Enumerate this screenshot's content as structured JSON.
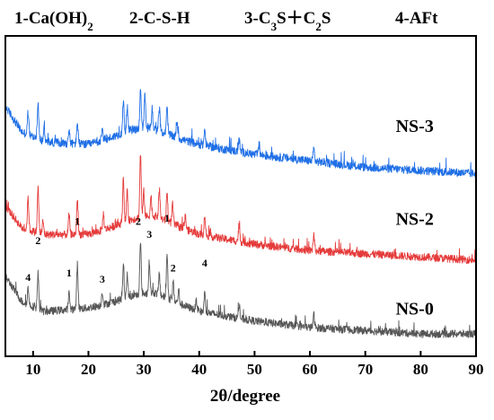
{
  "chart_data": {
    "type": "line",
    "title": "",
    "xlabel": "2θ/degree",
    "ylabel": "",
    "xlim": [
      5,
      90
    ],
    "x_ticks": [
      10,
      20,
      30,
      40,
      50,
      60,
      70,
      80,
      90
    ],
    "y_ticks_shown": false,
    "grid": false,
    "legend": {
      "placement": "top",
      "entries": [
        {
          "num": "1-",
          "text": "Ca(OH)",
          "sub": "2",
          "rest": ""
        },
        {
          "num": "2-",
          "text": "C-S-H",
          "sub": "",
          "rest": ""
        },
        {
          "num": "3-",
          "text": "C",
          "sub": "3",
          "rest": "S＋C",
          "sub2": "2",
          "rest2": "S"
        },
        {
          "num": "4-",
          "text": "AFt",
          "sub": "",
          "rest": ""
        }
      ]
    },
    "series": [
      {
        "name": "NS-3",
        "color": "#1f6fe6",
        "baseline": 0.68,
        "base_profile": [
          [
            5,
            0.78
          ],
          [
            8,
            0.7
          ],
          [
            12,
            0.67
          ],
          [
            20,
            0.66
          ],
          [
            28,
            0.69
          ],
          [
            32,
            0.69
          ],
          [
            40,
            0.66
          ],
          [
            50,
            0.63
          ],
          [
            60,
            0.61
          ],
          [
            70,
            0.59
          ],
          [
            80,
            0.58
          ],
          [
            90,
            0.57
          ]
        ],
        "peaks": [
          [
            9.1,
            0.07
          ],
          [
            10.9,
            0.11
          ],
          [
            12.0,
            0.04
          ],
          [
            16.5,
            0.04
          ],
          [
            18.0,
            0.07
          ],
          [
            22.5,
            0.03
          ],
          [
            26.3,
            0.1
          ],
          [
            27.0,
            0.08
          ],
          [
            29.4,
            0.13
          ],
          [
            30.2,
            0.1
          ],
          [
            31.5,
            0.06
          ],
          [
            32.8,
            0.07
          ],
          [
            34.2,
            0.08
          ],
          [
            36.0,
            0.05
          ],
          [
            41.0,
            0.05
          ],
          [
            47.2,
            0.04
          ],
          [
            50.8,
            0.03
          ],
          [
            60.7,
            0.04
          ]
        ],
        "noise": 0.013
      },
      {
        "name": "NS-2",
        "color": "#e53b3b",
        "baseline": 0.4,
        "base_profile": [
          [
            5,
            0.47
          ],
          [
            8,
            0.4
          ],
          [
            12,
            0.38
          ],
          [
            20,
            0.38
          ],
          [
            28,
            0.41
          ],
          [
            32,
            0.42
          ],
          [
            40,
            0.38
          ],
          [
            50,
            0.35
          ],
          [
            60,
            0.33
          ],
          [
            70,
            0.32
          ],
          [
            80,
            0.31
          ],
          [
            90,
            0.3
          ]
        ],
        "peaks": [
          [
            9.1,
            0.1
          ],
          [
            10.9,
            0.14
          ],
          [
            11.8,
            0.04
          ],
          [
            16.5,
            0.06
          ],
          [
            18.0,
            0.11
          ],
          [
            22.7,
            0.05
          ],
          [
            26.3,
            0.14
          ],
          [
            27.0,
            0.09
          ],
          [
            29.4,
            0.2
          ],
          [
            30.0,
            0.08
          ],
          [
            31.3,
            0.06
          ],
          [
            32.8,
            0.09
          ],
          [
            34.2,
            0.09
          ],
          [
            35.2,
            0.06
          ],
          [
            37.5,
            0.04
          ],
          [
            41.0,
            0.06
          ],
          [
            47.2,
            0.05
          ],
          [
            60.7,
            0.05
          ]
        ],
        "noise": 0.012
      },
      {
        "name": "NS-0",
        "color": "#555555",
        "baseline": 0.16,
        "base_profile": [
          [
            5,
            0.25
          ],
          [
            8,
            0.17
          ],
          [
            12,
            0.14
          ],
          [
            20,
            0.15
          ],
          [
            28,
            0.17
          ],
          [
            32,
            0.18
          ],
          [
            40,
            0.14
          ],
          [
            50,
            0.11
          ],
          [
            60,
            0.09
          ],
          [
            70,
            0.08
          ],
          [
            80,
            0.07
          ],
          [
            90,
            0.07
          ]
        ],
        "peaks": [
          [
            9.1,
            0.05
          ],
          [
            10.9,
            0.11
          ],
          [
            16.5,
            0.05
          ],
          [
            18.0,
            0.14
          ],
          [
            22.5,
            0.04
          ],
          [
            26.3,
            0.1
          ],
          [
            27.0,
            0.07
          ],
          [
            29.4,
            0.16
          ],
          [
            31.0,
            0.1
          ],
          [
            32.8,
            0.06
          ],
          [
            34.2,
            0.14
          ],
          [
            35.3,
            0.06
          ],
          [
            36.3,
            0.04
          ],
          [
            39.5,
            0.03
          ],
          [
            41.0,
            0.06
          ],
          [
            47.2,
            0.04
          ],
          [
            60.7,
            0.04
          ]
        ],
        "noise": 0.012
      }
    ],
    "peak_labels": [
      {
        "text": "4",
        "x": 9.1,
        "y": 0.235
      },
      {
        "text": "2",
        "x": 10.9,
        "y": 0.35
      },
      {
        "text": "1",
        "x": 16.5,
        "y": 0.25
      },
      {
        "text": "1",
        "x": 18.0,
        "y": 0.41
      },
      {
        "text": "3",
        "x": 22.5,
        "y": 0.23
      },
      {
        "text": "2",
        "x": 29.0,
        "y": 0.41
      },
      {
        "text": "3",
        "x": 31.0,
        "y": 0.37
      },
      {
        "text": "1",
        "x": 34.2,
        "y": 0.42
      },
      {
        "text": "2",
        "x": 35.3,
        "y": 0.265
      },
      {
        "text": "4",
        "x": 41.0,
        "y": 0.28
      }
    ],
    "series_label_positions": [
      {
        "series": "NS-3",
        "x": 75.5,
        "y": 0.7
      },
      {
        "series": "NS-2",
        "x": 75.5,
        "y": 0.41
      },
      {
        "series": "NS-0",
        "x": 75.5,
        "y": 0.13
      }
    ]
  }
}
